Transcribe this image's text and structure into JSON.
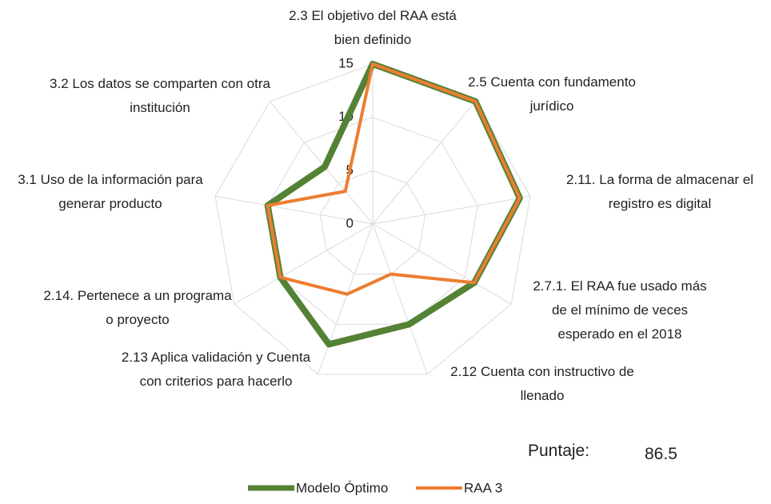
{
  "chart_data": {
    "type": "radar",
    "categories": [
      "2.3 El objetivo del RAA está bien definido",
      "2.5 Cuenta con fundamento jurídico",
      "2.11. La forma de almacenar el registro es digital",
      "2.7.1. El RAA fue usado más de el mínimo de veces esperado en el 2018",
      "2.12 Cuenta con instructivo de llenado",
      "2.13 Aplica validación y Cuenta con criterios para hacerlo",
      "2.14. Pertenece a un programa o proyecto",
      "3.1 Uso de la información para generar producto",
      "3.2 Los datos se comparten con otra institución"
    ],
    "series": [
      {
        "name": "Modelo Óptimo",
        "color": "#548235",
        "values": [
          15,
          15,
          14,
          11,
          10,
          12,
          10,
          10,
          7
        ]
      },
      {
        "name": "RAA 3",
        "color": "#ed7d31",
        "values": [
          15,
          15,
          14,
          11,
          5,
          7,
          10,
          10,
          4
        ]
      }
    ],
    "ylim": [
      0,
      15
    ],
    "yticks": [
      0,
      5,
      10,
      15
    ],
    "grid": true,
    "legend": "bottom",
    "annotations": [
      "Puntaje:",
      "86.5"
    ]
  }
}
